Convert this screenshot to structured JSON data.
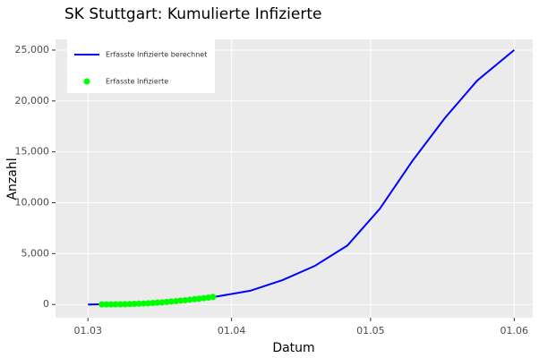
{
  "chart_data": {
    "type": "line",
    "title": "SK Stuttgart: Kumulierte Infizierte",
    "x_label": "Datum",
    "y_label": "Anzahl",
    "xlim": [
      "23.02",
      "05.06"
    ],
    "xticks": [
      "01.03",
      "01.04",
      "01.05",
      "01.06"
    ],
    "ylim": [
      -1300,
      26050
    ],
    "yticks": [
      0,
      {
        "value": 5000,
        "label": "5,000"
      },
      {
        "value": 10000,
        "label": "10,000"
      },
      {
        "value": 15000,
        "label": "15,000"
      },
      {
        "value": 20000,
        "label": "20,000"
      },
      {
        "value": 25000,
        "label": "25,000"
      }
    ],
    "grid": true,
    "legend": "top-left",
    "series": [
      {
        "name": "Erfasste Infizierte berechnet",
        "color": "#0000ff",
        "mode": "line",
        "x": [
          "01.03",
          "08.03",
          "15.03",
          "22.03",
          "29.03",
          "05.04",
          "12.04",
          "19.04",
          "26.04",
          "03.05",
          "10.05",
          "17.05",
          "24.05",
          "01.06"
        ],
        "values": [
          0,
          60,
          200,
          450,
          800,
          1350,
          2400,
          3800,
          5800,
          9400,
          14100,
          18300,
          22000,
          25000
        ]
      },
      {
        "name": "Erfasste Infizierte",
        "color": "#00ff00",
        "mode": "points",
        "x": [
          "04.03",
          "05.03",
          "06.03",
          "07.03",
          "08.03",
          "09.03",
          "10.03",
          "11.03",
          "12.03",
          "13.03",
          "14.03",
          "15.03",
          "16.03",
          "17.03",
          "18.03",
          "19.03",
          "20.03",
          "21.03",
          "22.03",
          "23.03",
          "24.03",
          "25.03",
          "26.03",
          "27.03",
          "28.03"
        ],
        "values": [
          5,
          7,
          10,
          15,
          20,
          30,
          40,
          60,
          80,
          100,
          120,
          150,
          180,
          210,
          250,
          290,
          330,
          380,
          420,
          470,
          520,
          570,
          620,
          680,
          740
        ]
      }
    ]
  }
}
